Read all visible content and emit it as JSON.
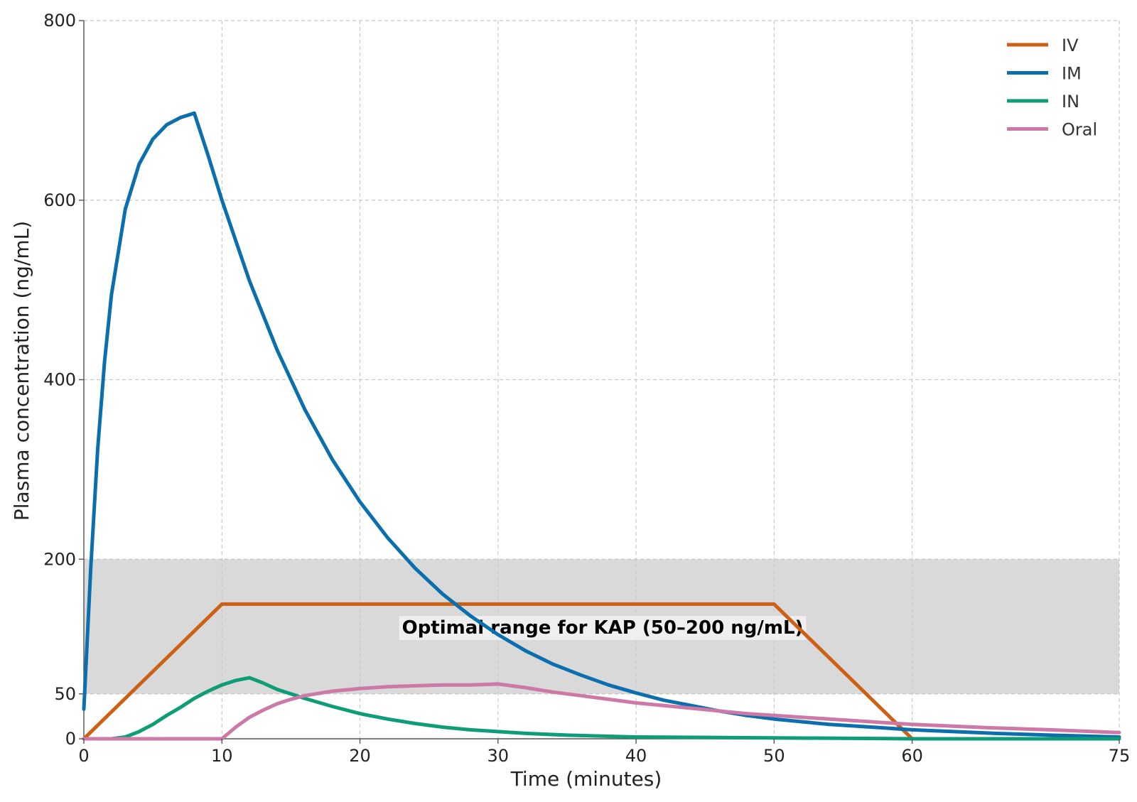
{
  "chart_data": {
    "type": "line",
    "title": "",
    "xlabel": "Time (minutes)",
    "ylabel": "Plasma concentration (ng/mL)",
    "xlim": [
      0,
      75
    ],
    "ylim": [
      0,
      800
    ],
    "xticks": [
      0,
      10,
      20,
      30,
      40,
      50,
      60,
      75
    ],
    "yticks": [
      0,
      50,
      200,
      400,
      600,
      800
    ],
    "grid": true,
    "legend_position": "top-right",
    "band": {
      "y_from": 50,
      "y_to": 200,
      "label": "Optimal range for KAP (50–200 ng/mL)",
      "color": "#d9d9d9"
    },
    "series": [
      {
        "name": "IV",
        "color": "#cc6014",
        "points": [
          [
            0,
            0
          ],
          [
            10,
            150
          ],
          [
            50,
            150
          ],
          [
            60,
            0
          ]
        ]
      },
      {
        "name": "IM",
        "color": "#0b6fad",
        "points": [
          [
            0,
            33
          ],
          [
            0.5,
            190
          ],
          [
            1,
            322
          ],
          [
            1.5,
            420
          ],
          [
            2,
            495
          ],
          [
            3,
            590
          ],
          [
            4,
            640
          ],
          [
            5,
            668
          ],
          [
            6,
            684
          ],
          [
            7,
            692
          ],
          [
            8,
            697
          ],
          [
            9,
            650
          ],
          [
            10,
            600
          ],
          [
            12,
            510
          ],
          [
            14,
            433
          ],
          [
            16,
            367
          ],
          [
            18,
            311
          ],
          [
            20,
            264
          ],
          [
            22,
            224
          ],
          [
            24,
            190
          ],
          [
            26,
            161
          ],
          [
            28,
            137
          ],
          [
            30,
            116
          ],
          [
            32,
            98
          ],
          [
            34,
            83
          ],
          [
            36,
            71
          ],
          [
            38,
            60
          ],
          [
            40,
            51
          ],
          [
            42,
            43
          ],
          [
            44,
            37
          ],
          [
            46,
            31
          ],
          [
            48,
            26
          ],
          [
            50,
            22
          ],
          [
            52,
            19
          ],
          [
            54,
            16
          ],
          [
            56,
            14
          ],
          [
            58,
            12
          ],
          [
            60,
            10
          ],
          [
            63,
            8
          ],
          [
            66,
            6
          ],
          [
            70,
            4
          ],
          [
            75,
            2
          ]
        ]
      },
      {
        "name": "IN",
        "color": "#0f9d78",
        "points": [
          [
            0,
            0
          ],
          [
            2,
            0
          ],
          [
            3,
            2
          ],
          [
            4,
            8
          ],
          [
            5,
            16
          ],
          [
            6,
            26
          ],
          [
            7,
            35
          ],
          [
            8,
            45
          ],
          [
            9,
            53
          ],
          [
            10,
            60
          ],
          [
            11,
            65
          ],
          [
            12,
            68
          ],
          [
            13,
            62
          ],
          [
            14,
            55
          ],
          [
            16,
            45
          ],
          [
            18,
            36
          ],
          [
            20,
            28
          ],
          [
            22,
            22
          ],
          [
            24,
            17
          ],
          [
            26,
            13
          ],
          [
            28,
            10
          ],
          [
            30,
            8
          ],
          [
            32,
            6
          ],
          [
            35,
            4
          ],
          [
            40,
            2
          ],
          [
            50,
            1
          ],
          [
            60,
            0
          ],
          [
            75,
            0
          ]
        ]
      },
      {
        "name": "Oral",
        "color": "#cc79a7",
        "points": [
          [
            0,
            0
          ],
          [
            10,
            0
          ],
          [
            11,
            13
          ],
          [
            12,
            24
          ],
          [
            13,
            32
          ],
          [
            14,
            39
          ],
          [
            15,
            44
          ],
          [
            16,
            48
          ],
          [
            18,
            53
          ],
          [
            20,
            56
          ],
          [
            22,
            58
          ],
          [
            24,
            59
          ],
          [
            26,
            60
          ],
          [
            28,
            60
          ],
          [
            30,
            61
          ],
          [
            32,
            57
          ],
          [
            34,
            52
          ],
          [
            36,
            48
          ],
          [
            38,
            44
          ],
          [
            40,
            40
          ],
          [
            42,
            37
          ],
          [
            44,
            34
          ],
          [
            46,
            31
          ],
          [
            48,
            28
          ],
          [
            50,
            26
          ],
          [
            52,
            24
          ],
          [
            54,
            22
          ],
          [
            56,
            20
          ],
          [
            58,
            18
          ],
          [
            60,
            16
          ],
          [
            63,
            14
          ],
          [
            66,
            12
          ],
          [
            70,
            10
          ],
          [
            75,
            7
          ]
        ]
      }
    ]
  }
}
